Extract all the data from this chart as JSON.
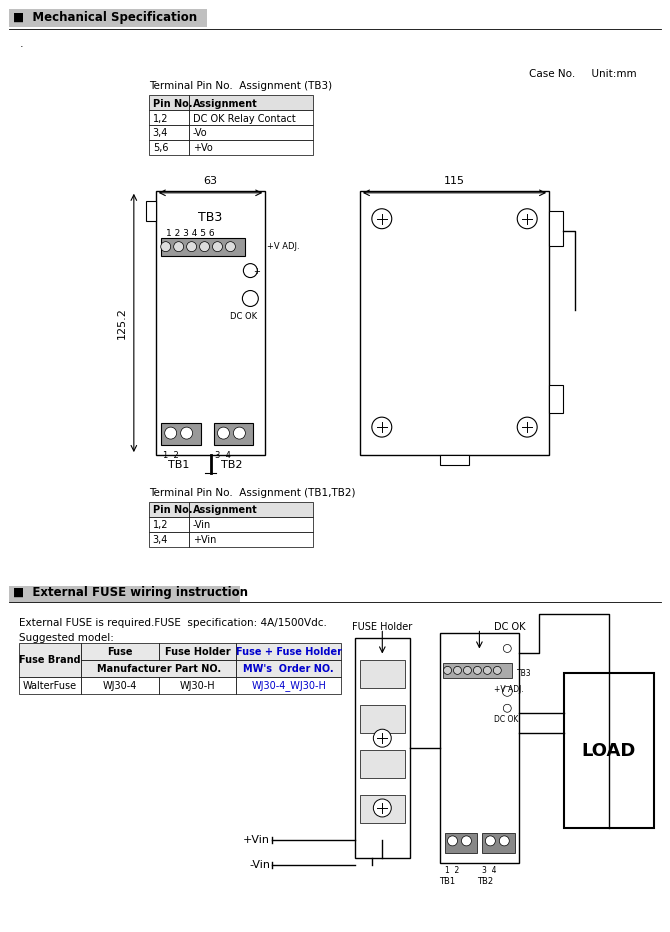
{
  "title_mech": "■  Mechanical Specification",
  "title_fuse": "■  External FUSE wiring instruction",
  "case_no_text": "Case No.     Unit:mm",
  "tb3_title": "Terminal Pin No.  Assignment (TB3)",
  "tb3_headers": [
    "Pin No.",
    "Assignment"
  ],
  "tb3_rows": [
    [
      "1,2",
      "DC OK Relay Contact"
    ],
    [
      "3,4",
      "-Vo"
    ],
    [
      "5,6",
      "+Vo"
    ]
  ],
  "tb12_title": "Terminal Pin No.  Assignment (TB1,TB2)",
  "tb12_headers": [
    "Pin No.",
    "Assignment"
  ],
  "tb12_rows": [
    [
      "1,2",
      "-Vin"
    ],
    [
      "3,4",
      "+Vin"
    ]
  ],
  "dim_63": "63",
  "dim_125": "125.2",
  "dim_115": "115",
  "fuse_note1": "External FUSE is required.FUSE  specification: 4A/1500Vdc.",
  "fuse_note2": "Suggested model:",
  "link_color": "#0000CD",
  "bg_color": "#ffffff",
  "text_color": "#000000",
  "fuse_holder_label": "FUSE Holder",
  "dc_ok_label": "DC OK",
  "tb3_label": "TB3",
  "tb1_label": "TB1",
  "tb2_label": "TB2",
  "plus_vin_label": "+Vin",
  "minus_vin_label": "-Vin",
  "load_label": "LOAD",
  "plus_vadj_label": "+V ADJ.",
  "dc_ok_small": "DC OK",
  "tb3_nums": "1 2 3 4 5 6",
  "tb3_label_diag": "TB3",
  "fuse_row": [
    "WalterFuse",
    "WJ30-4",
    "WJ30-H",
    "WJ30-4_WJ30-H"
  ]
}
